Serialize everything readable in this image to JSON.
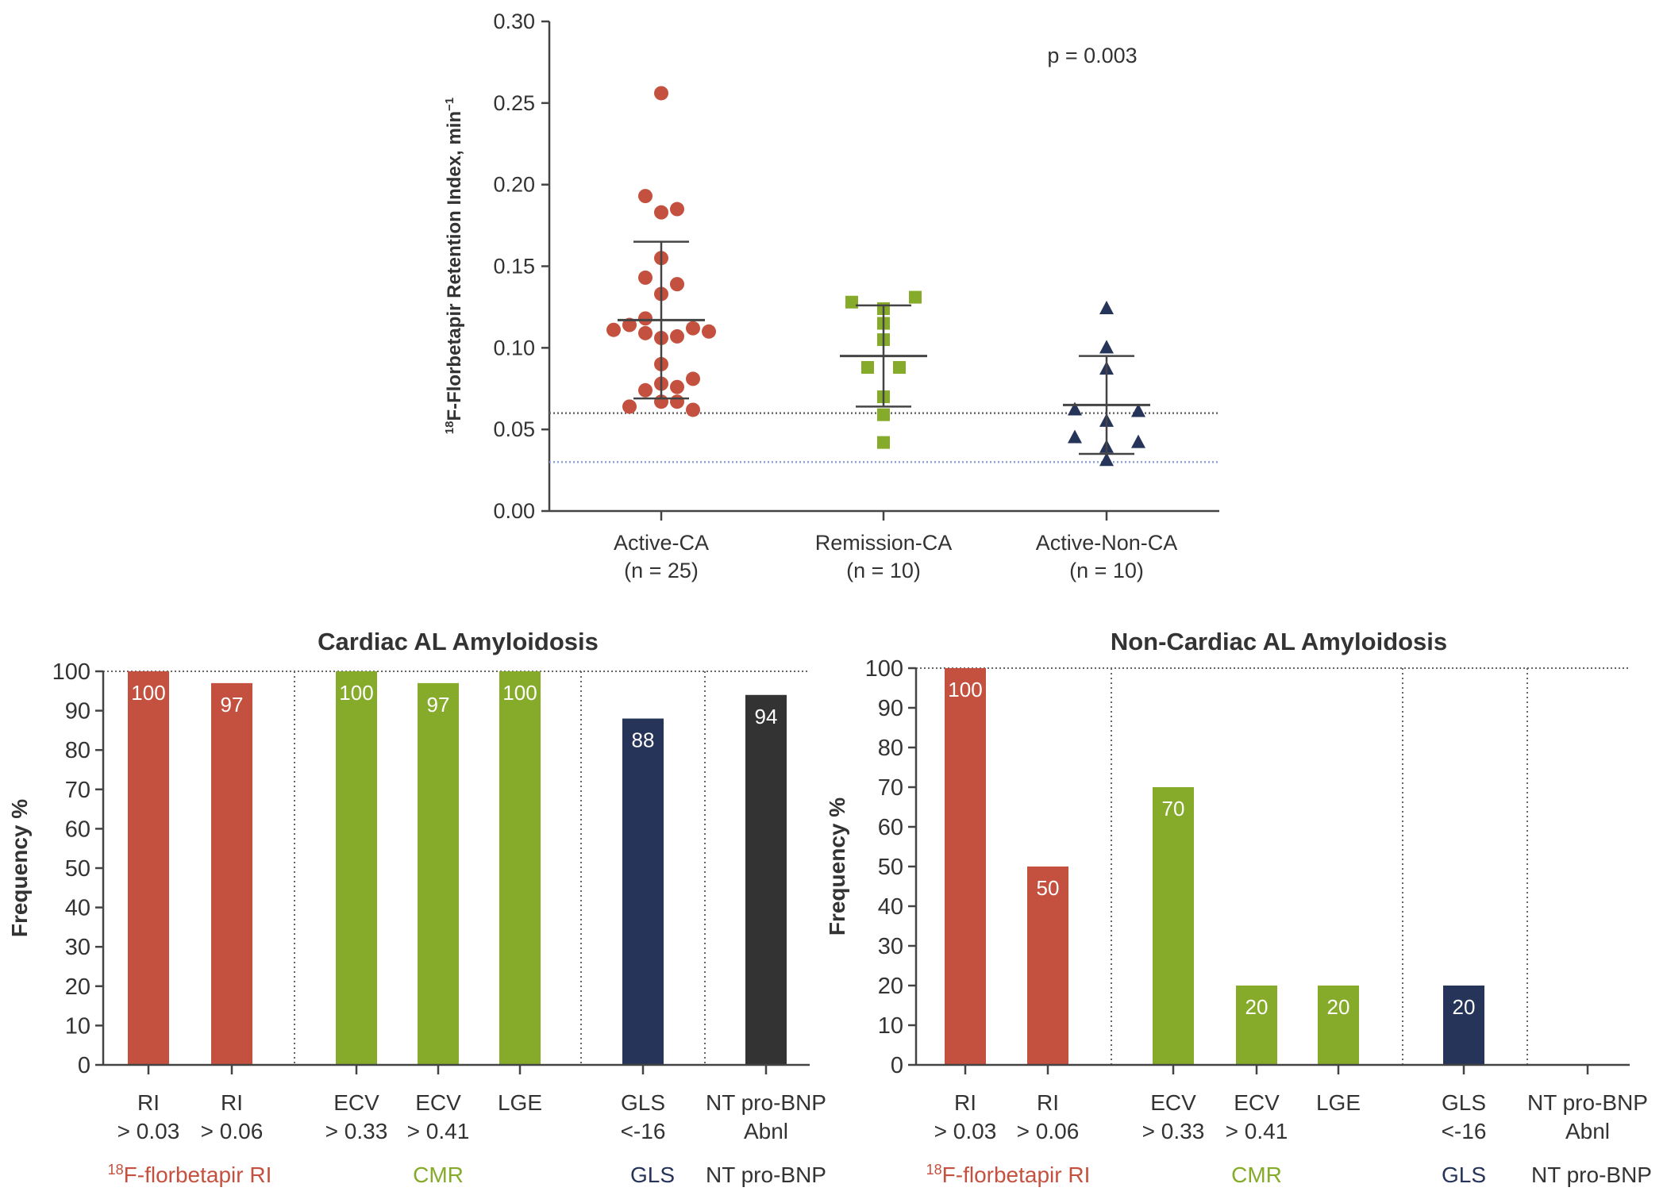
{
  "chart_data": [
    {
      "type": "scatter",
      "ylabel_sup": "18",
      "ylabel": "F-Florbetapir Retention Index, min",
      "ylabel_exp": "−1",
      "ylim": [
        0,
        0.3
      ],
      "yticks": [
        "0.00",
        "0.05",
        "0.10",
        "0.15",
        "0.20",
        "0.25",
        "0.30"
      ],
      "annotation": "p = 0.003",
      "reference_lines": [
        {
          "y": 0.06,
          "color": "#666666"
        },
        {
          "y": 0.03,
          "color": "#8fa3d9"
        }
      ],
      "groups": [
        {
          "name": "Active-CA",
          "n_label": "(n = 25)",
          "marker": "circle",
          "color": "#c4513f",
          "mean": 0.117,
          "sd_low": 0.069,
          "sd_high": 0.165,
          "values": [
            0.256,
            0.193,
            0.183,
            0.185,
            0.155,
            0.143,
            0.139,
            0.133,
            0.118,
            0.114,
            0.111,
            0.109,
            0.106,
            0.107,
            0.112,
            0.11,
            0.09,
            0.081,
            0.078,
            0.074,
            0.076,
            0.067,
            0.067,
            0.064,
            0.062
          ],
          "jitter": [
            0,
            -1,
            0,
            1,
            0,
            -1,
            1,
            0,
            -1,
            -2,
            -3,
            -1,
            0,
            1,
            2,
            3,
            0,
            2,
            0,
            -1,
            1,
            0,
            1,
            -2,
            2
          ]
        },
        {
          "name": "Remission-CA",
          "n_label": "(n = 10)",
          "marker": "square",
          "color": "#86ab2b",
          "mean": 0.095,
          "sd_low": 0.064,
          "sd_high": 0.126,
          "values": [
            0.128,
            0.131,
            0.124,
            0.115,
            0.105,
            0.088,
            0.088,
            0.07,
            0.059,
            0.042
          ],
          "jitter": [
            -2,
            2,
            0,
            0,
            0,
            -1,
            1,
            0,
            0,
            0
          ]
        },
        {
          "name": "Active-Non-CA",
          "n_label": "(n = 10)",
          "marker": "triangle",
          "color": "#27345a",
          "mean": 0.065,
          "sd_low": 0.035,
          "sd_high": 0.095,
          "values": [
            0.124,
            0.1,
            0.087,
            0.062,
            0.061,
            0.055,
            0.045,
            0.042,
            0.039,
            0.031
          ],
          "jitter": [
            0,
            0,
            0,
            -2,
            2,
            0,
            -2,
            2,
            0,
            0
          ]
        }
      ]
    },
    {
      "type": "bar",
      "title": "Cardiac AL Amyloidosis",
      "ylabel": "Frequency %",
      "ylim": [
        0,
        100
      ],
      "yticks": [
        "0",
        "10",
        "20",
        "30",
        "40",
        "50",
        "60",
        "70",
        "80",
        "90",
        "100"
      ],
      "bars": [
        {
          "line1": "RI",
          "line2": "> 0.03",
          "value": 100,
          "label": "100",
          "color": "#c4513f"
        },
        {
          "line1": "RI",
          "line2": "> 0.06",
          "value": 97,
          "label": "97",
          "color": "#c4513f"
        },
        {
          "line1": "ECV",
          "line2": "> 0.33",
          "value": 100,
          "label": "100",
          "color": "#86ab2b"
        },
        {
          "line1": "ECV",
          "line2": "> 0.41",
          "value": 97,
          "label": "97",
          "color": "#86ab2b"
        },
        {
          "line1": "LGE",
          "line2": "",
          "value": 100,
          "label": "100",
          "color": "#86ab2b"
        },
        {
          "line1": "GLS",
          "line2": "<-16",
          "value": 88,
          "label": "88",
          "color": "#27345a"
        },
        {
          "line1": "NT pro-BNP",
          "line2": "Abnl",
          "value": 94,
          "label": "94",
          "color": "#333333"
        }
      ],
      "groups": [
        {
          "sup": "18",
          "name": "F-florbetapir RI",
          "color": "#c4513f"
        },
        {
          "sup": "",
          "name": "CMR",
          "color": "#86ab2b"
        },
        {
          "sup": "",
          "name": "GLS",
          "color": "#27345a"
        },
        {
          "sup": "",
          "name": "NT pro-BNP",
          "color": "#333333"
        }
      ]
    },
    {
      "type": "bar",
      "title": "Non-Cardiac AL Amyloidosis",
      "ylabel": "Frequency %",
      "ylim": [
        0,
        100
      ],
      "yticks": [
        "0",
        "10",
        "20",
        "30",
        "40",
        "50",
        "60",
        "70",
        "80",
        "90",
        "100"
      ],
      "bars": [
        {
          "line1": "RI",
          "line2": "> 0.03",
          "value": 100,
          "label": "100",
          "color": "#c4513f"
        },
        {
          "line1": "RI",
          "line2": "> 0.06",
          "value": 50,
          "label": "50",
          "color": "#c4513f"
        },
        {
          "line1": "ECV",
          "line2": "> 0.33",
          "value": 70,
          "label": "70",
          "color": "#86ab2b"
        },
        {
          "line1": "ECV",
          "line2": "> 0.41",
          "value": 20,
          "label": "20",
          "color": "#86ab2b"
        },
        {
          "line1": "LGE",
          "line2": "",
          "value": 20,
          "label": "20",
          "color": "#86ab2b"
        },
        {
          "line1": "GLS",
          "line2": "<-16",
          "value": 20,
          "label": "20",
          "color": "#27345a"
        },
        {
          "line1": "NT pro-BNP",
          "line2": "Abnl",
          "value": 0,
          "label": "",
          "color": "#333333"
        }
      ],
      "groups": [
        {
          "sup": "18",
          "name": "F-florbetapir RI",
          "color": "#c4513f"
        },
        {
          "sup": "",
          "name": "CMR",
          "color": "#86ab2b"
        },
        {
          "sup": "",
          "name": "GLS",
          "color": "#27345a"
        },
        {
          "sup": "",
          "name": "NT pro-BNP",
          "color": "#333333"
        }
      ]
    }
  ]
}
